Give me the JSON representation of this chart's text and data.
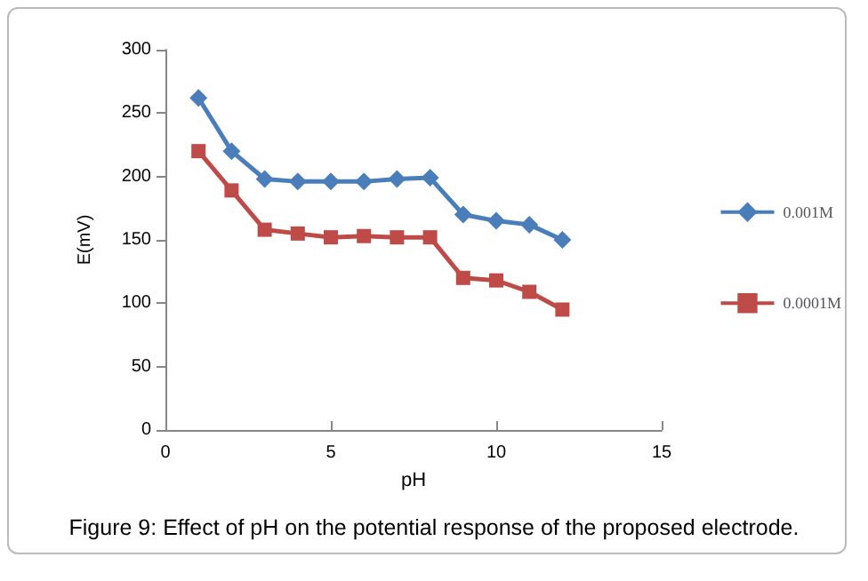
{
  "chart_data": {
    "type": "line",
    "xlabel": "pH",
    "ylabel": "E(mV)",
    "annotations": [
      "Figure 9: Effect of pH on the potential response of the proposed electrode."
    ],
    "x": [
      1,
      2,
      3,
      4,
      5,
      6,
      7,
      8,
      9,
      10,
      11,
      12
    ],
    "series": [
      {
        "name": "0.001M",
        "color": "#4a7ebb",
        "marker": "diamond",
        "values": [
          262,
          220,
          198,
          196,
          196,
          196,
          198,
          199,
          170,
          165,
          162,
          150
        ]
      },
      {
        "name": "0.0001M",
        "color": "#be4b48",
        "marker": "square",
        "values": [
          220,
          189,
          158,
          155,
          152,
          153,
          152,
          152,
          120,
          118,
          109,
          95
        ]
      }
    ],
    "xlim": [
      0,
      15
    ],
    "xticks": [
      0,
      5,
      10,
      15
    ],
    "ylim": [
      0,
      300
    ],
    "yticks": [
      0,
      50,
      100,
      150,
      200,
      250,
      300
    ],
    "grid": false,
    "legend": "right"
  }
}
